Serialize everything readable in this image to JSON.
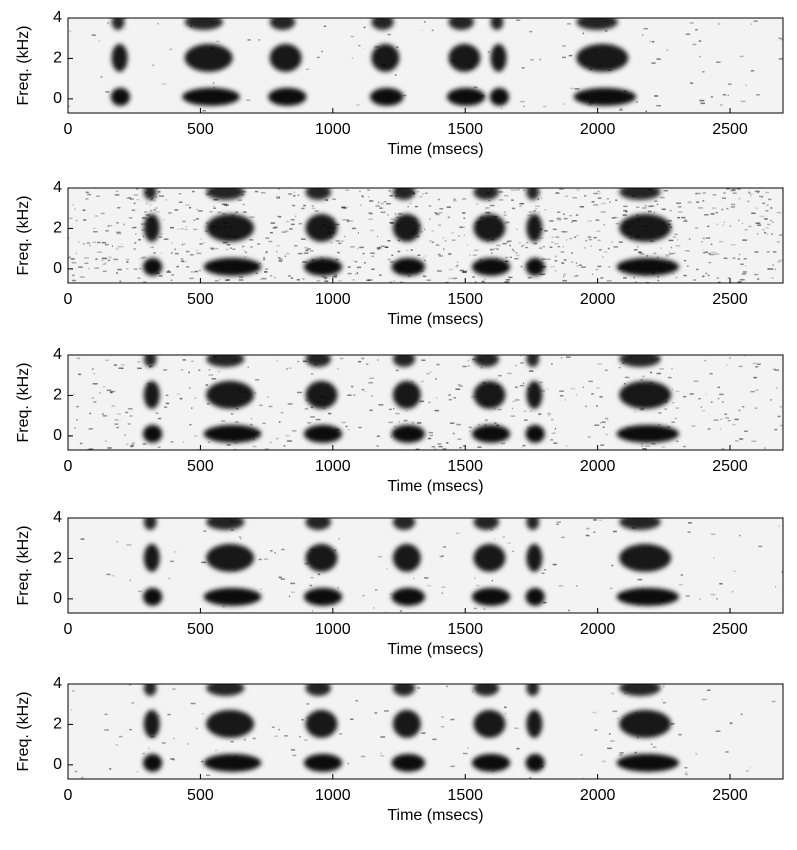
{
  "chart_data": [
    {
      "type": "spectrogram",
      "xlabel": "Time (msecs)",
      "ylabel": "Freq. (kHz)",
      "xlim": [
        0,
        2700
      ],
      "ylim": [
        -0.7,
        4
      ],
      "xticks": [
        0,
        500,
        1000,
        1500,
        2000,
        2500
      ],
      "yticks": [
        0,
        2,
        4
      ]
    },
    {
      "type": "spectrogram",
      "xlabel": "Time (msecs)",
      "ylabel": "Freq. (kHz)",
      "xlim": [
        0,
        2700
      ],
      "ylim": [
        -0.7,
        4
      ],
      "xticks": [
        0,
        500,
        1000,
        1500,
        2000,
        2500
      ],
      "yticks": [
        0,
        2,
        4
      ]
    },
    {
      "type": "spectrogram",
      "xlabel": "Time (msecs)",
      "ylabel": "Freq. (kHz)",
      "xlim": [
        0,
        2700
      ],
      "ylim": [
        -0.7,
        4
      ],
      "xticks": [
        0,
        500,
        1000,
        1500,
        2000,
        2500
      ],
      "yticks": [
        0,
        2,
        4
      ]
    },
    {
      "type": "spectrogram",
      "xlabel": "Time (msecs)",
      "ylabel": "Freq. (kHz)",
      "xlim": [
        0,
        2700
      ],
      "ylim": [
        -0.7,
        4
      ],
      "xticks": [
        0,
        500,
        1000,
        1500,
        2000,
        2500
      ],
      "yticks": [
        0,
        2,
        4
      ]
    },
    {
      "type": "spectrogram",
      "xlabel": "Time (msecs)",
      "ylabel": "Freq. (kHz)",
      "xlim": [
        0,
        2700
      ],
      "ylim": [
        -0.7,
        4
      ],
      "xticks": [
        0,
        500,
        1000,
        1500,
        2000,
        2500
      ],
      "yticks": [
        0,
        2,
        4
      ]
    }
  ]
}
